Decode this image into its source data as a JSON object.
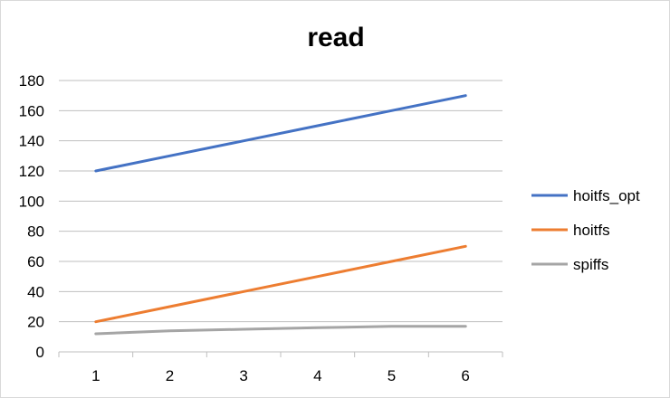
{
  "chart_data": {
    "type": "line",
    "title": "read",
    "xlabel": "",
    "ylabel": "",
    "categories": [
      "1",
      "2",
      "3",
      "4",
      "5",
      "6"
    ],
    "ylim": [
      0,
      180
    ],
    "yticks": [
      "0",
      "20",
      "40",
      "60",
      "80",
      "100",
      "120",
      "140",
      "160",
      "180"
    ],
    "grid": true,
    "legend_position": "right",
    "series": [
      {
        "name": "hoitfs_opt",
        "color": "#4472c4",
        "values": [
          120,
          130,
          140,
          150,
          160,
          170
        ]
      },
      {
        "name": "hoitfs",
        "color": "#ed7d31",
        "values": [
          20,
          30,
          40,
          50,
          60,
          70
        ]
      },
      {
        "name": "spiffs",
        "color": "#a5a5a5",
        "values": [
          12,
          14,
          15,
          16,
          17,
          17
        ]
      }
    ]
  }
}
